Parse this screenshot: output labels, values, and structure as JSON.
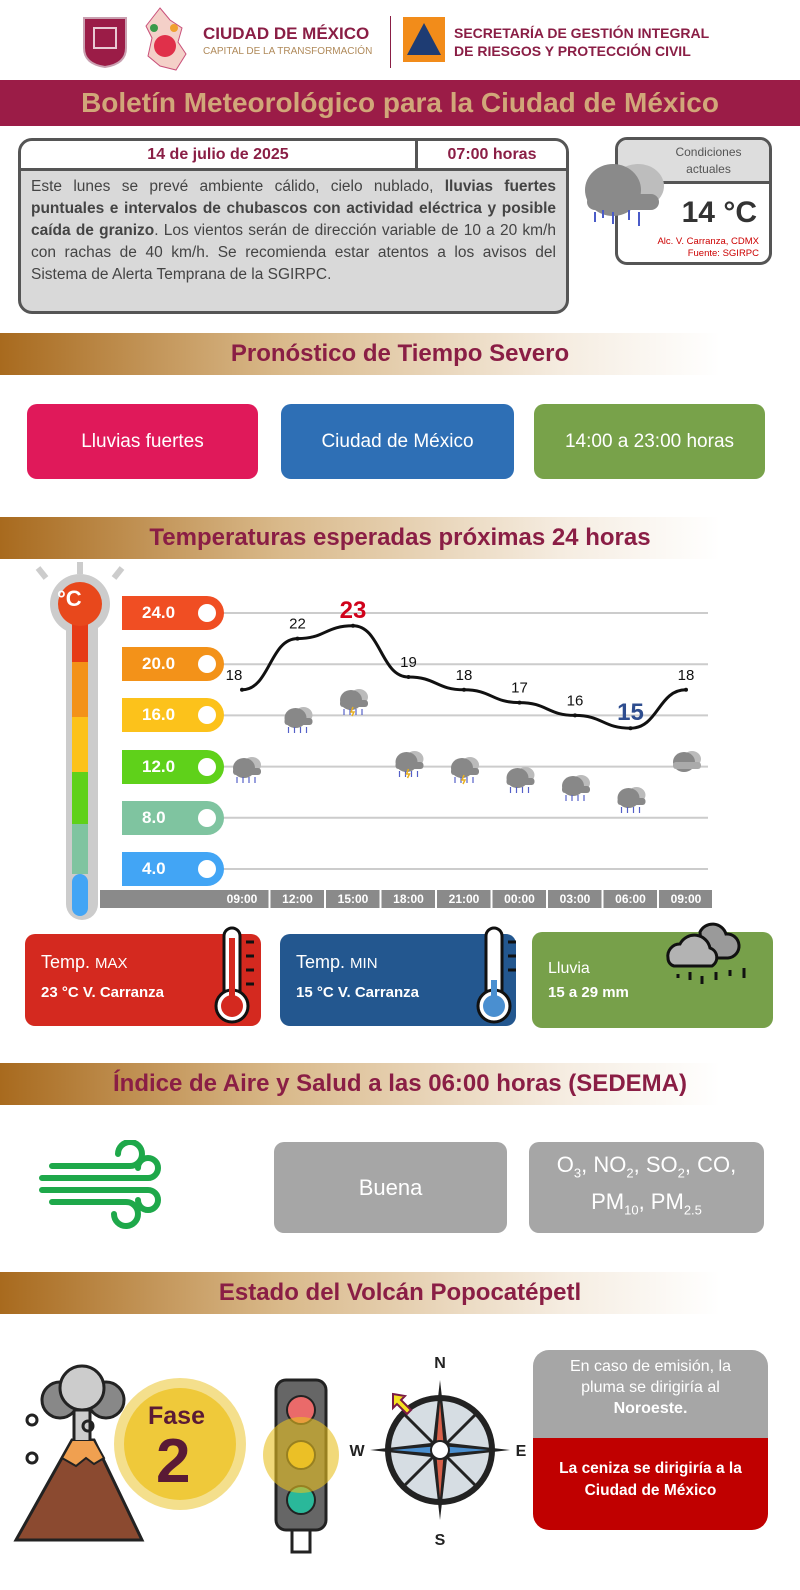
{
  "header": {
    "org_name": "CIUDAD DE MÉXICO",
    "org_tagline": "CAPITAL DE LA TRANSFORMACIÓN",
    "agency_line1": "SECRETARÍA DE GESTIÓN INTEGRAL",
    "agency_line2": "DE RIESGOS Y PROTECCIÓN CIVIL",
    "title": "Boletín Meteorológico para la Ciudad de México"
  },
  "bulletin": {
    "date": "14 de julio de 2025",
    "time": "07:00 horas",
    "text_1": "Este lunes se prevé ambiente cálido, cielo nublado, ",
    "text_bold": "lluvias fuertes puntuales e intervalos de chubascos con actividad eléctrica y posible caída de granizo",
    "text_2": ". Los vientos serán de dirección variable de 10 a 20 km/h con rachas de 40 km/h. Se recomienda estar atentos a los avisos del Sistema de Alerta Temprana de la SGIRPC."
  },
  "current": {
    "title_1": "Condiciones",
    "title_2": "actuales",
    "icon": "rain-cloud-icon",
    "temperature": "14 °C",
    "location": "Alc. V. Carranza, CDMX",
    "source": "Fuente: SGIRPC"
  },
  "severe": {
    "title": "Pronóstico de Tiempo Severo",
    "phenomenon": "Lluvias fuertes",
    "area": "Ciudad de México",
    "period": "14:00 a 23:00 horas",
    "colors": {
      "phenomenon": "#e0195a",
      "area": "#2e6fb5",
      "period": "#78a24a"
    }
  },
  "temps": {
    "title": "Temperaturas esperadas próximas 24 horas",
    "unit_badge": "°C"
  },
  "chart_data": {
    "type": "line",
    "title": "",
    "xlabel": "",
    "ylabel": "°C",
    "categories": [
      "09:00",
      "12:00",
      "15:00",
      "18:00",
      "21:00",
      "00:00",
      "03:00",
      "06:00",
      "09:00"
    ],
    "values": [
      18,
      22,
      23,
      19,
      18,
      17,
      16,
      15,
      18
    ],
    "data_labels": [
      "18",
      "22",
      "23",
      "19",
      "18",
      "17",
      "16",
      "15",
      "18"
    ],
    "y_ticks": [
      "24.0",
      "20.0",
      "16.0",
      "12.0",
      "8.0",
      "4.0"
    ],
    "y_tick_colors": [
      "#f04e23",
      "#f39219",
      "#fcc21b",
      "#5fd11a",
      "#7fc4a0",
      "#42a5f5"
    ],
    "ylim": [
      4,
      24
    ],
    "grid": true,
    "max_color": "#d0021b",
    "min_color": "#2e4d8f",
    "weather_icons": [
      "rain",
      "rain",
      "storm",
      "storm",
      "storm",
      "rain",
      "rain",
      "rain",
      "cloudy"
    ]
  },
  "cards": {
    "max_label": "Temp.",
    "max_sub": "MAX",
    "max_value": "23 °C  V. Carranza",
    "min_label": "Temp.",
    "min_sub": "MIN",
    "min_value": "15 °C  V. Carranza",
    "rain_label": "Lluvia",
    "rain_value": "15 a 29 mm"
  },
  "air": {
    "title": "Índice de Aire y Salud a las 06:00 horas (SEDEMA)",
    "quality": "Buena",
    "pollutants": [
      "O",
      "3",
      ", NO",
      "2",
      ", SO",
      "2",
      ", CO,",
      "PM",
      "10",
      ", PM",
      "2.5"
    ],
    "icon": "wind-icon"
  },
  "volcano": {
    "title": "Estado del Volcán Popocatépetl",
    "phase_label": "Fase",
    "phase_number": "2",
    "traffic_light": "yellow",
    "compass": {
      "n": "N",
      "s": "S",
      "e": "E",
      "w": "W"
    },
    "plume_1": "En caso de emisión, la pluma se dirigiría al ",
    "plume_dir": "Noroeste.",
    "ash": "La ceniza se dirigiría a la Ciudad de México"
  }
}
